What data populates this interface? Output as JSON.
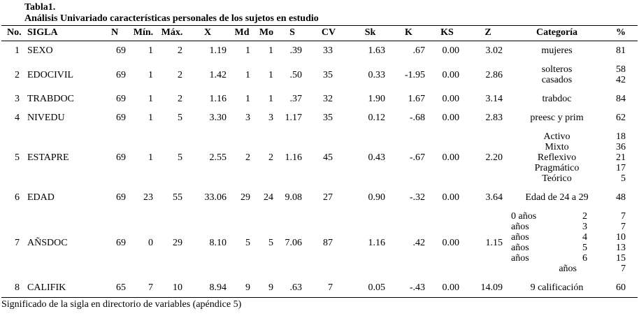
{
  "title": "Tabla1.",
  "subtitle": "Análisis Univariado características personales de los sujetos en estudio",
  "footnote": "Significado de la sigla en directorio de variables (apéndice 5)",
  "colors": {
    "text": "#000000",
    "background": "#ffffff",
    "rule": "#000000"
  },
  "columns": [
    "No.",
    "SIGLA",
    "N",
    "Mín.",
    "Máx.",
    "X",
    "Md",
    "Mo",
    "S",
    "CV",
    "Sk",
    "K",
    "KS",
    "Z",
    "Categoría",
    "%"
  ],
  "rows": [
    {
      "no": "1",
      "sigla": "SEXO",
      "n": "69",
      "min": "1",
      "max": "2",
      "x": "1.19",
      "md": "1",
      "mo": "1",
      "s": ".39",
      "cv": "33",
      "sk": "1.63",
      "k": ".67",
      "ks": "0.00",
      "z": "3.02",
      "categories": [
        {
          "label": "mujeres",
          "pct": "81"
        }
      ]
    },
    {
      "no": "2",
      "sigla": "EDOCIVIL",
      "n": "69",
      "min": "1",
      "max": "2",
      "x": "1.42",
      "md": "1",
      "mo": "1",
      "s": ".50",
      "cv": "35",
      "sk": "0.33",
      "k": "-1.95",
      "ks": "0.00",
      "z": "2.86",
      "categories": [
        {
          "label": "solteros",
          "pct": "58"
        },
        {
          "label": "casados",
          "pct": "42"
        }
      ]
    },
    {
      "no": "3",
      "sigla": "TRABDOC",
      "n": "69",
      "min": "1",
      "max": "2",
      "x": "1.16",
      "md": "1",
      "mo": "1",
      "s": ".37",
      "cv": "32",
      "sk": "1.90",
      "k": "1.67",
      "ks": "0.00",
      "z": "3.14",
      "categories": [
        {
          "label": "trabdoc",
          "pct": "84"
        }
      ]
    },
    {
      "no": "4",
      "sigla": "NIVEDU",
      "n": "69",
      "min": "1",
      "max": "5",
      "x": "3.30",
      "md": "3",
      "mo": "3",
      "s": "1.17",
      "cv": "35",
      "sk": "0.12",
      "k": "-.68",
      "ks": "0.00",
      "z": "2.83",
      "categories": [
        {
          "label": "preesc y prim",
          "pct": "62"
        }
      ]
    },
    {
      "no": "5",
      "sigla": "ESTAPRE",
      "n": "69",
      "min": "1",
      "max": "5",
      "x": "2.55",
      "md": "2",
      "mo": "2",
      "s": "1.16",
      "cv": "45",
      "sk": "0.43",
      "k": "-.67",
      "ks": "0.00",
      "z": "2.20",
      "categories": [
        {
          "label": "Activo",
          "pct": "18"
        },
        {
          "label": "Mixto",
          "pct": "36"
        },
        {
          "label": "Reflexivo",
          "pct": "21"
        },
        {
          "label": "Pragmático",
          "pct": "17"
        },
        {
          "label": "Teórico",
          "pct": "5"
        }
      ]
    },
    {
      "no": "6",
      "sigla": "EDAD",
      "n": "69",
      "min": "23",
      "max": "55",
      "x": "33.06",
      "md": "29",
      "mo": "24",
      "s": "9.08",
      "cv": "27",
      "sk": "0.90",
      "k": "-.32",
      "ks": "0.00",
      "z": "3.64",
      "categories": [
        {
          "label": "Edad de 24 a 29",
          "pct": "48"
        }
      ]
    },
    {
      "no": "7",
      "sigla": "AÑSDOC",
      "n": "69",
      "min": "0",
      "max": "29",
      "x": "8.10",
      "md": "5",
      "mo": "5",
      "s": "7.06",
      "cv": "87",
      "sk": "1.16",
      "k": ".42",
      "ks": "0.00",
      "z": "1.15",
      "categories": [
        {
          "label": "0 años",
          "value": "2",
          "pct": "7"
        },
        {
          "label": "años",
          "value": "3",
          "pct": "7"
        },
        {
          "label": "años",
          "value": "4",
          "pct": "10"
        },
        {
          "label": "años",
          "value": "5",
          "pct": "13"
        },
        {
          "label": "años",
          "value": "6",
          "pct": "15"
        },
        {
          "label": "años",
          "value": "",
          "indent": true,
          "pct": "7"
        }
      ]
    },
    {
      "no": "8",
      "sigla": "CALIFIK",
      "n": "65",
      "min": "7",
      "max": "10",
      "x": "8.94",
      "md": "9",
      "mo": "9",
      "s": ".63",
      "cv": "7",
      "sk": "0.05",
      "k": "-.43",
      "ks": "0.00",
      "z": "14.09",
      "categories": [
        {
          "label": "9 calificación",
          "pct": "60"
        }
      ]
    }
  ]
}
